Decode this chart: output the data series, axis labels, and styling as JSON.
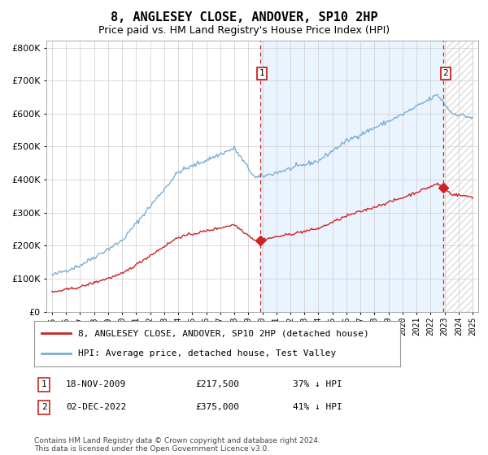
{
  "title": "8, ANGLESEY CLOSE, ANDOVER, SP10 2HP",
  "subtitle": "Price paid vs. HM Land Registry's House Price Index (HPI)",
  "title_fontsize": 11,
  "subtitle_fontsize": 9,
  "ytick_values": [
    0,
    100000,
    200000,
    300000,
    400000,
    500000,
    600000,
    700000,
    800000
  ],
  "ylim": [
    0,
    820000
  ],
  "xlim_start": 1994.6,
  "xlim_end": 2025.4,
  "hpi_color": "#7bafd4",
  "hpi_fill_color": "#ddeeff",
  "price_color": "#cc2222",
  "dashed_color": "#cc2222",
  "hatch_color": "#aaaaaa",
  "marker1_x": 2009.88,
  "marker1_y": 217500,
  "marker1_label": "1",
  "marker2_x": 2022.92,
  "marker2_y": 375000,
  "marker2_label": "2",
  "legend_line1": "8, ANGLESEY CLOSE, ANDOVER, SP10 2HP (detached house)",
  "legend_line2": "HPI: Average price, detached house, Test Valley",
  "sale1_date": "18-NOV-2009",
  "sale1_price": "£217,500",
  "sale1_pct": "37% ↓ HPI",
  "sale2_date": "02-DEC-2022",
  "sale2_price": "£375,000",
  "sale2_pct": "41% ↓ HPI",
  "footer": "Contains HM Land Registry data © Crown copyright and database right 2024.\nThis data is licensed under the Open Government Licence v3.0.",
  "background_color": "#ffffff",
  "grid_color": "#cccccc"
}
